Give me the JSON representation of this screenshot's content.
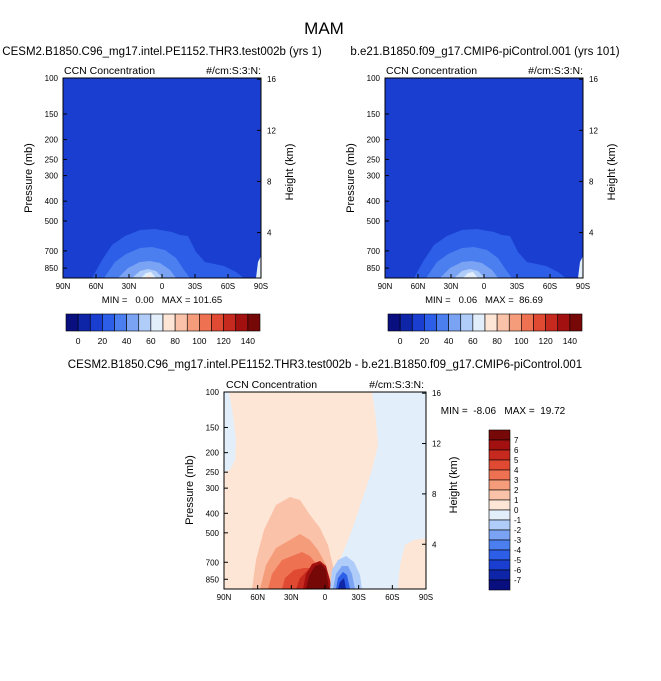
{
  "title": "MAM",
  "colors": {
    "panel_fill": "#1a3fd0",
    "diff_positive": "#fbe0cf",
    "diff_negative": "#d6e7fb"
  },
  "chart_data": [
    {
      "type": "heatmap",
      "id": "left",
      "case": "CESM2.B1850.C96_mg17.intel.PE1152.THR3.test002b (yrs 1)",
      "variable": "CCN Concentration",
      "units": "#/cm:S:3:N:",
      "ylabel": "Pressure (mb)",
      "ylabel_right": "Height (km)",
      "x_ticks": [
        "90N",
        "60N",
        "30N",
        "0",
        "30S",
        "60S",
        "90S"
      ],
      "y_ticks": [
        "100",
        "150",
        "200",
        "250",
        "300",
        "400",
        "500",
        "700",
        "850"
      ],
      "y_ticks_right": [
        "16",
        "12",
        "8",
        "4"
      ],
      "min_max": "MIN =   0.00   MAX = 101.65",
      "min": 0.0,
      "max": 101.65
    },
    {
      "type": "heatmap",
      "id": "right",
      "case": "b.e21.B1850.f09_g17.CMIP6-piControl.001 (yrs 101)",
      "variable": "CCN Concentration",
      "units": "#/cm:S:3:N:",
      "ylabel": "Pressure (mb)",
      "ylabel_right": "Height (km)",
      "x_ticks": [
        "90N",
        "60N",
        "30N",
        "0",
        "30S",
        "60S",
        "90S"
      ],
      "y_ticks": [
        "100",
        "150",
        "200",
        "250",
        "300",
        "400",
        "500",
        "700",
        "850"
      ],
      "y_ticks_right": [
        "16",
        "12",
        "8",
        "4"
      ],
      "min_max": "MIN =   0.06   MAX =  86.69",
      "min": 0.06,
      "max": 86.69
    },
    {
      "type": "heatmap",
      "id": "diff",
      "case": "CESM2.B1850.C96_mg17.intel.PE1152.THR3.test002b - b.e21.B1850.f09_g17.CMIP6-piControl.001",
      "variable": "CCN Concentration",
      "units": "#/cm:S:3:N:",
      "ylabel": "Pressure (mb)",
      "ylabel_right": "Height (km)",
      "x_ticks": [
        "90N",
        "60N",
        "30N",
        "0",
        "30S",
        "60S",
        "90S"
      ],
      "y_ticks": [
        "100",
        "150",
        "200",
        "250",
        "300",
        "400",
        "500",
        "700",
        "850"
      ],
      "y_ticks_right": [
        "16",
        "12",
        "8",
        "4"
      ],
      "min_max": "MIN =  -8.06   MAX =  19.72",
      "min": -8.06,
      "max": 19.72
    }
  ],
  "colorbar_top": {
    "labels": [
      "0",
      "20",
      "40",
      "60",
      "80",
      "100",
      "120",
      "140"
    ],
    "colors": [
      "#0a0f80",
      "#0e25a8",
      "#1a3fd0",
      "#2c5ee8",
      "#4b7eef",
      "#7aa3f4",
      "#b0ccf8",
      "#e3eefb",
      "#fde6d6",
      "#fac2a8",
      "#f59c7a",
      "#ee7252",
      "#e04a32",
      "#c62a1e",
      "#a21010",
      "#760808"
    ]
  },
  "colorbar_diff": {
    "labels": [
      "7",
      "6",
      "5",
      "4",
      "3",
      "2",
      "1",
      "0",
      "-1",
      "-2",
      "-3",
      "-4",
      "-5",
      "-6",
      "-7"
    ],
    "colors": [
      "#760808",
      "#a21010",
      "#c62a1e",
      "#e04a32",
      "#ee7252",
      "#f59c7a",
      "#fac2a8",
      "#fde6d6",
      "#e3eefb",
      "#b0ccf8",
      "#7aa3f4",
      "#4b7eef",
      "#2c5ee8",
      "#1a3fd0",
      "#0e25a8",
      "#0a0f80"
    ]
  }
}
